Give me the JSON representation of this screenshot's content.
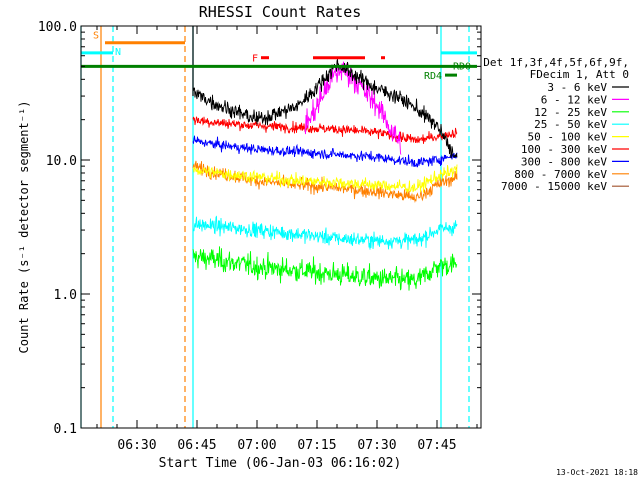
{
  "chart_data": {
    "type": "line",
    "title": "RHESSI Count Rates",
    "xlabel": "Start Time (06-Jan-03 06:16:02)",
    "ylabel": "Count Rate (s⁻¹ detector segment⁻¹)",
    "scale": "log",
    "xlim": [
      "06:16",
      "07:56"
    ],
    "ylim": [
      0.1,
      100.0
    ],
    "x_ticks": [
      "06:30",
      "06:45",
      "07:00",
      "07:15",
      "07:30",
      "07:45"
    ],
    "y_ticks": [
      "0.1",
      "1.0",
      "10.0",
      "100.0"
    ],
    "legend_position": "top-right",
    "legend_header": [
      "Det 1f,3f,4f,5f,6f,9f,",
      "FDecim 1, Att 0"
    ],
    "timestamp": "13-Oct-2021 18:18",
    "data_start": "06:44",
    "data_end": "07:50",
    "series": [
      {
        "name": "3 - 6 keV",
        "color": "#000000",
        "points": [
          [
            "06:44",
            32
          ],
          [
            "06:50",
            26
          ],
          [
            "07:00",
            20
          ],
          [
            "07:10",
            25
          ],
          [
            "07:15",
            35
          ],
          [
            "07:20",
            52
          ],
          [
            "07:25",
            42
          ],
          [
            "07:30",
            34
          ],
          [
            "07:35",
            30
          ],
          [
            "07:40",
            24
          ],
          [
            "07:45",
            18
          ],
          [
            "07:50",
            10
          ]
        ]
      },
      {
        "name": "6 - 12 keV",
        "color": "#ff00ff",
        "points": [
          [
            "07:12",
            18
          ],
          [
            "07:15",
            25
          ],
          [
            "07:18",
            38
          ],
          [
            "07:21",
            48
          ],
          [
            "07:24",
            42
          ],
          [
            "07:27",
            32
          ],
          [
            "07:30",
            26
          ],
          [
            "07:33",
            18
          ],
          [
            "07:36",
            13
          ]
        ]
      },
      {
        "name": "12 - 25 keV",
        "color": "#00ff00",
        "points": [
          [
            "06:44",
            1.9
          ],
          [
            "06:50",
            1.8
          ],
          [
            "07:00",
            1.6
          ],
          [
            "07:10",
            1.5
          ],
          [
            "07:20",
            1.4
          ],
          [
            "07:30",
            1.3
          ],
          [
            "07:40",
            1.25
          ],
          [
            "07:45",
            1.6
          ],
          [
            "07:50",
            1.7
          ]
        ]
      },
      {
        "name": "25 - 50 keV",
        "color": "#00ffff",
        "points": [
          [
            "06:44",
            3.3
          ],
          [
            "06:50",
            3.2
          ],
          [
            "07:00",
            3.0
          ],
          [
            "07:10",
            2.8
          ],
          [
            "07:20",
            2.6
          ],
          [
            "07:30",
            2.5
          ],
          [
            "07:40",
            2.5
          ],
          [
            "07:45",
            3.0
          ],
          [
            "07:50",
            3.2
          ]
        ]
      },
      {
        "name": "50 - 100 keV",
        "color": "#ffff00",
        "points": [
          [
            "06:44",
            8.5
          ],
          [
            "06:50",
            8.0
          ],
          [
            "07:00",
            7.5
          ],
          [
            "07:10",
            7.0
          ],
          [
            "07:20",
            6.8
          ],
          [
            "07:30",
            6.5
          ],
          [
            "07:40",
            6.2
          ],
          [
            "07:45",
            7.5
          ],
          [
            "07:50",
            8.5
          ]
        ]
      },
      {
        "name": "100 - 300 keV",
        "color": "#ff0000",
        "points": [
          [
            "06:44",
            20
          ],
          [
            "06:50",
            19
          ],
          [
            "07:00",
            18
          ],
          [
            "07:10",
            17.5
          ],
          [
            "07:20",
            17
          ],
          [
            "07:30",
            16
          ],
          [
            "07:40",
            14
          ],
          [
            "07:45",
            15
          ],
          [
            "07:50",
            16
          ]
        ]
      },
      {
        "name": "300 - 800 keV",
        "color": "#0000ff",
        "points": [
          [
            "06:44",
            14
          ],
          [
            "06:50",
            13
          ],
          [
            "07:00",
            12
          ],
          [
            "07:10",
            11.5
          ],
          [
            "07:20",
            11
          ],
          [
            "07:30",
            10.5
          ],
          [
            "07:40",
            9.5
          ],
          [
            "07:45",
            10
          ],
          [
            "07:50",
            11
          ]
        ]
      },
      {
        "name": "800 - 7000 keV",
        "color": "#ff8000",
        "points": [
          [
            "06:44",
            9
          ],
          [
            "06:50",
            8
          ],
          [
            "07:00",
            7
          ],
          [
            "07:10",
            6.5
          ],
          [
            "07:20",
            6.2
          ],
          [
            "07:30",
            5.8
          ],
          [
            "07:40",
            5.2
          ],
          [
            "07:45",
            6.5
          ],
          [
            "07:50",
            7.5
          ]
        ]
      },
      {
        "name": "7000 - 15000 keV",
        "color": "#a0522d",
        "points": []
      }
    ],
    "vertical_lines": [
      {
        "time": "06:16",
        "color": "#00ffff",
        "style": "solid"
      },
      {
        "time": "06:21",
        "color": "#ff8000",
        "style": "solid"
      },
      {
        "time": "06:24",
        "color": "#00ffff",
        "style": "dashed"
      },
      {
        "time": "06:42",
        "color": "#ff8000",
        "style": "dashed"
      },
      {
        "time": "06:44",
        "color": "#00ffff",
        "style": "solid"
      },
      {
        "time": "06:44",
        "color": "#000000",
        "style": "solid"
      },
      {
        "time": "07:46",
        "color": "#00ffff",
        "style": "solid"
      },
      {
        "time": "07:53",
        "color": "#00ffff",
        "style": "dashed"
      }
    ],
    "flags": [
      {
        "label": "S",
        "color": "#ff8000",
        "start": "06:22",
        "end": "06:42",
        "level": 75
      },
      {
        "label": "N",
        "color": "#00ffff",
        "start": "06:16",
        "end": "06:24",
        "level": 63
      },
      {
        "label": "F",
        "color": "#ff0000",
        "start": "07:01",
        "end": "07:03",
        "level": 58
      },
      {
        "label": "",
        "color": "#ff0000",
        "start": "07:14",
        "end": "07:27",
        "level": 58
      },
      {
        "label": "",
        "color": "#ff0000",
        "start": "07:31",
        "end": "07:32",
        "level": 58
      },
      {
        "label": "",
        "color": "#00ffff",
        "start": "07:46",
        "end": "07:55",
        "level": 63
      },
      {
        "label": "RD0",
        "color": "#008000",
        "start": "06:16",
        "end": "07:55",
        "level": 50
      },
      {
        "label": "RD4",
        "color": "#008000",
        "start": "07:47",
        "end": "07:50",
        "level": 43
      }
    ]
  }
}
